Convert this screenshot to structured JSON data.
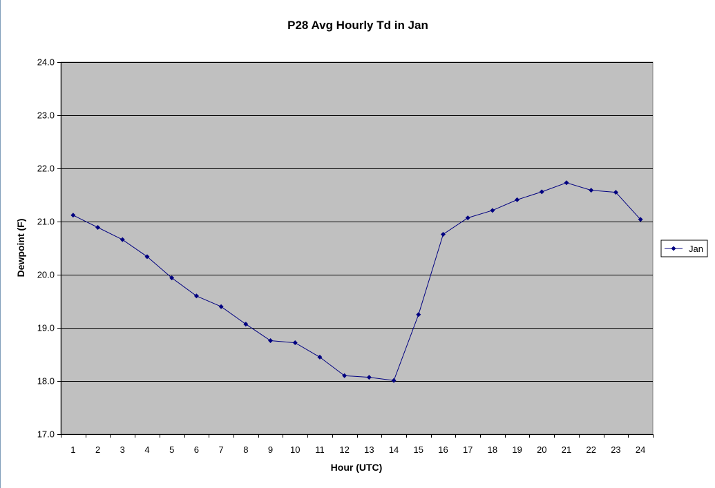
{
  "chart_data": {
    "type": "line",
    "title": "P28 Avg Hourly Td in Jan",
    "xlabel": "Hour (UTC)",
    "ylabel": "Dewpoint (F)",
    "categories": [
      "1",
      "2",
      "3",
      "4",
      "5",
      "6",
      "7",
      "8",
      "9",
      "10",
      "11",
      "12",
      "13",
      "14",
      "15",
      "16",
      "17",
      "18",
      "19",
      "20",
      "21",
      "22",
      "23",
      "24"
    ],
    "series": [
      {
        "name": "Jan",
        "values": [
          21.12,
          20.89,
          20.66,
          20.34,
          19.94,
          19.6,
          19.4,
          19.07,
          18.76,
          18.72,
          18.45,
          18.1,
          18.07,
          18.01,
          19.25,
          20.76,
          21.07,
          21.21,
          21.41,
          21.56,
          21.73,
          21.59,
          21.55,
          21.04
        ]
      }
    ],
    "ylim": [
      17.0,
      24.0
    ],
    "yticks": [
      "17.0",
      "18.0",
      "19.0",
      "20.0",
      "21.0",
      "22.0",
      "23.0",
      "24.0"
    ],
    "grid": true,
    "legend_position": "right",
    "colors": {
      "plot_background": "#c0c0c0",
      "series": "#000080",
      "gridline": "#000000"
    }
  }
}
